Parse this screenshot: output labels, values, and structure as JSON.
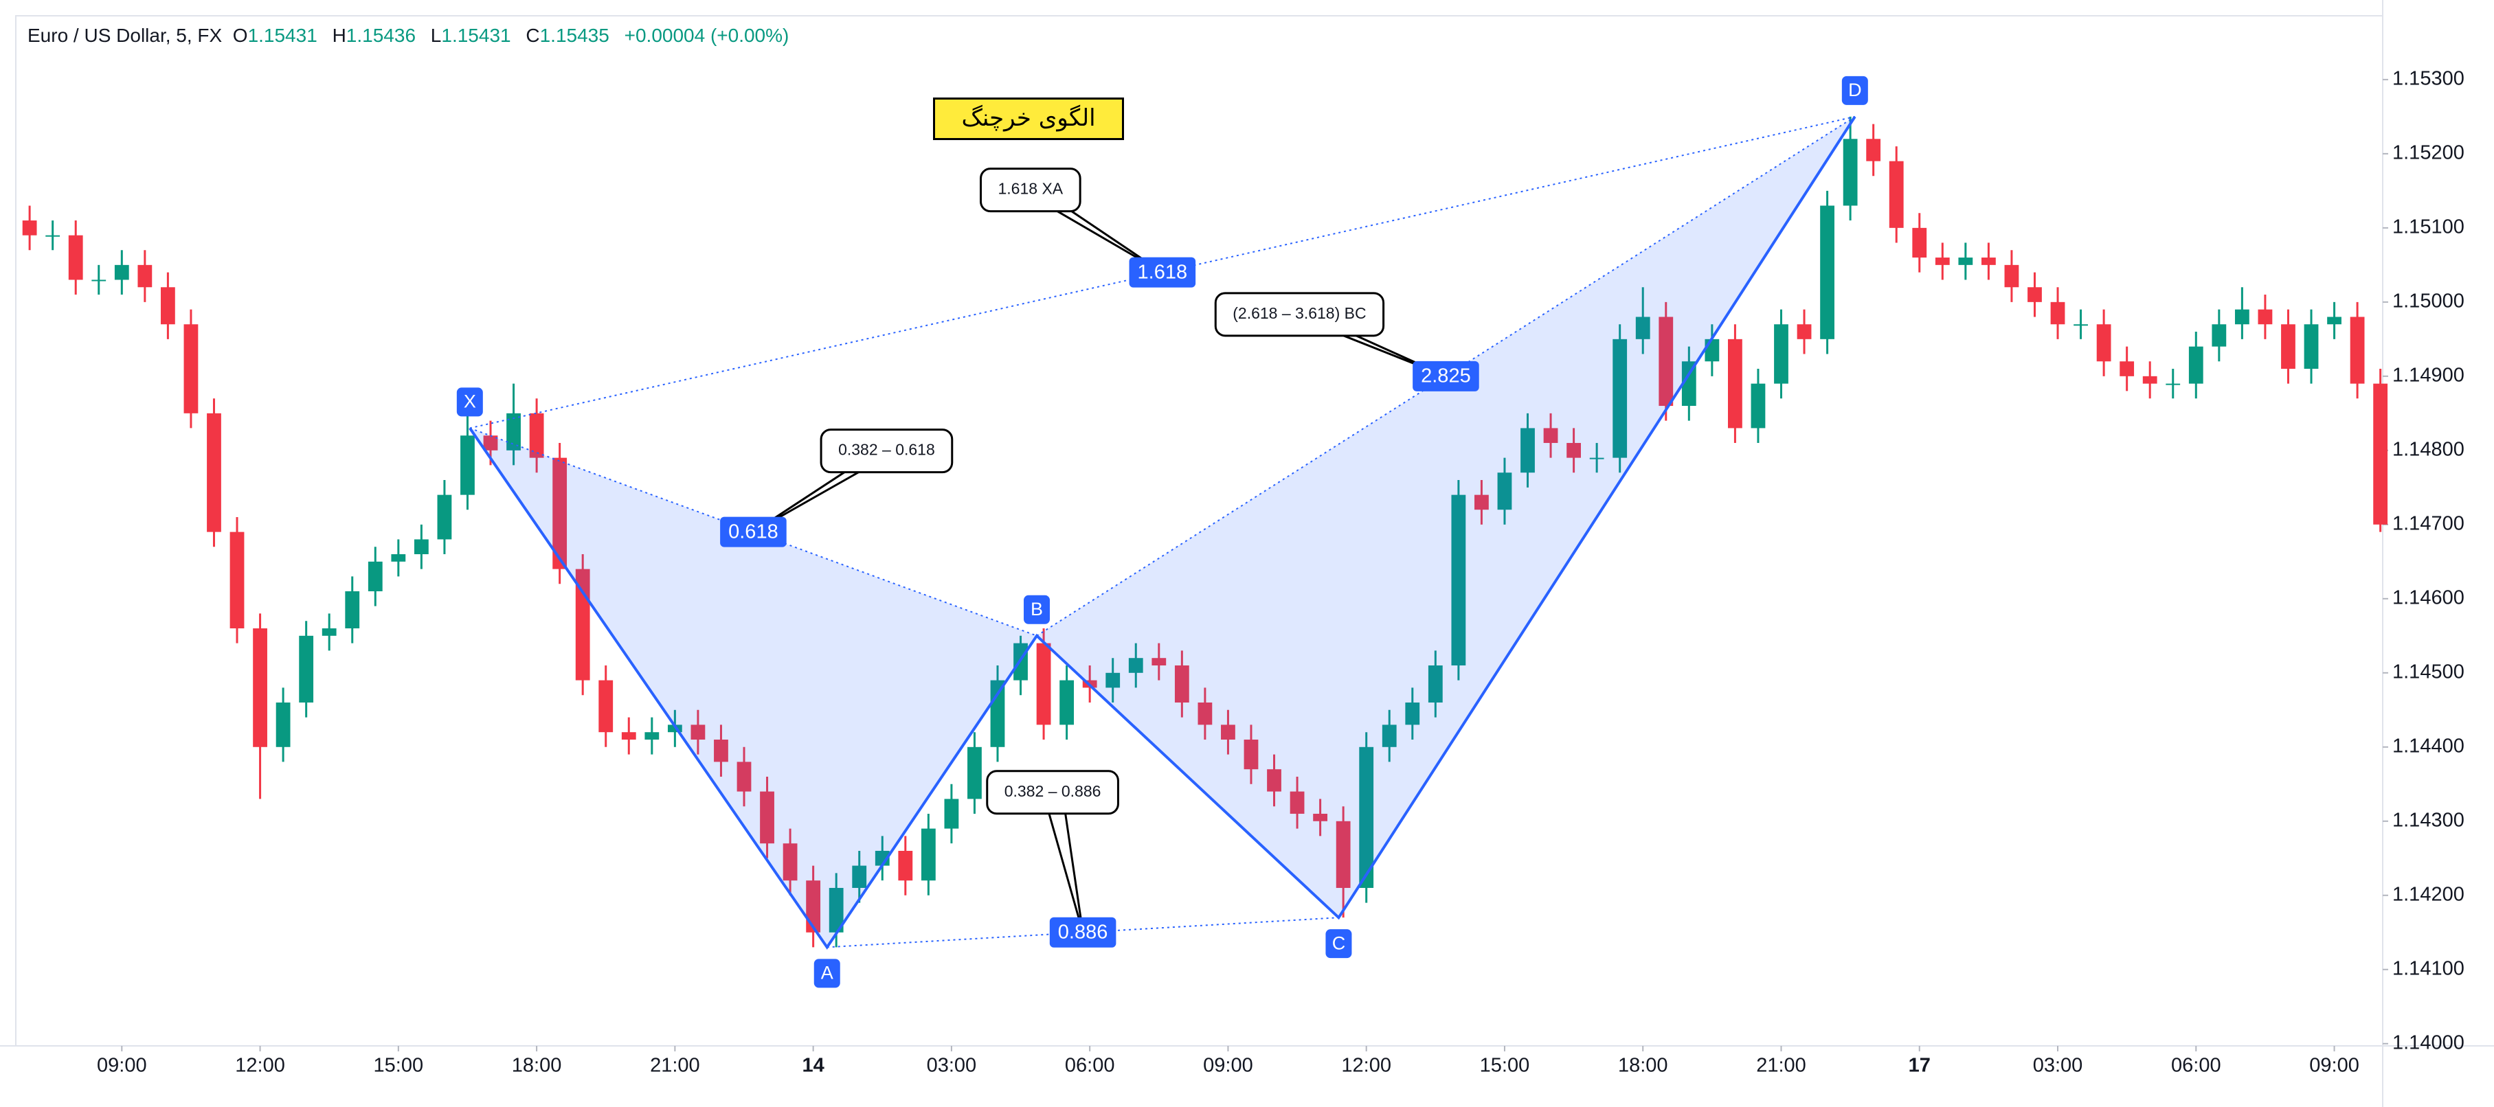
{
  "chart_data": {
    "type": "candlestick",
    "symbol": "Euro / US Dollar, 5, FX",
    "ohlc": [
      {
        "label": "O",
        "value": 1.15431
      },
      {
        "label": "H",
        "value": 1.15436
      },
      {
        "label": "L",
        "value": 1.15431
      },
      {
        "label": "C",
        "value": 1.15435
      }
    ],
    "change": "+0.00004 (+0.00%)",
    "title": "الگوی خرچنگ",
    "up_color": "#089981",
    "down_color": "#f23645",
    "grid": false,
    "xlim": [
      6.7,
      58.05
    ],
    "ylim": [
      1.13997,
      1.15386
    ],
    "xticks": [
      {
        "value": 9,
        "label": "09:00"
      },
      {
        "value": 12,
        "label": "12:00"
      },
      {
        "value": 15,
        "label": "15:00"
      },
      {
        "value": 18,
        "label": "18:00"
      },
      {
        "value": 21,
        "label": "21:00"
      },
      {
        "value": 24,
        "label": "14"
      },
      {
        "value": 27,
        "label": "03:00"
      },
      {
        "value": 30,
        "label": "06:00"
      },
      {
        "value": 33,
        "label": "09:00"
      },
      {
        "value": 36,
        "label": "12:00"
      },
      {
        "value": 39,
        "label": "15:00"
      },
      {
        "value": 42,
        "label": "18:00"
      },
      {
        "value": 45,
        "label": "21:00"
      },
      {
        "value": 48,
        "label": "17"
      },
      {
        "value": 51,
        "label": "03:00"
      },
      {
        "value": 54,
        "label": "06:00"
      },
      {
        "value": 57,
        "label": "09:00"
      }
    ],
    "yticks": [
      {
        "value": 1.14,
        "label": "1.14000"
      },
      {
        "value": 1.141,
        "label": "1.14100"
      },
      {
        "value": 1.142,
        "label": "1.14200"
      },
      {
        "value": 1.143,
        "label": "1.14300"
      },
      {
        "value": 1.144,
        "label": "1.14400"
      },
      {
        "value": 1.145,
        "label": "1.14500"
      },
      {
        "value": 1.146,
        "label": "1.14600"
      },
      {
        "value": 1.147,
        "label": "1.14700"
      },
      {
        "value": 1.148,
        "label": "1.14800"
      },
      {
        "value": 1.149,
        "label": "1.14900"
      },
      {
        "value": 1.15,
        "label": "1.15000"
      },
      {
        "value": 1.151,
        "label": "1.15100"
      },
      {
        "value": 1.152,
        "label": "1.15200"
      },
      {
        "value": 1.153,
        "label": "1.15300"
      }
    ],
    "x": [
      7,
      7.5,
      8,
      8.5,
      9,
      9.5,
      10,
      10.5,
      11,
      11.5,
      12,
      12.5,
      13,
      13.5,
      14,
      14.5,
      15,
      15.5,
      16,
      16.5,
      17,
      17.5,
      18,
      18.5,
      19,
      19.5,
      20,
      20.5,
      21,
      21.5,
      22,
      22.5,
      23,
      23.5,
      24,
      24.5,
      25,
      25.5,
      26,
      26.5,
      27,
      27.5,
      28,
      28.5,
      29,
      29.5,
      30,
      30.5,
      31,
      31.5,
      32,
      32.5,
      33,
      33.5,
      34,
      34.5,
      35,
      35.5,
      36,
      36.5,
      37,
      37.5,
      38,
      38.5,
      39,
      39.5,
      40,
      40.5,
      41,
      41.5,
      42,
      42.5,
      43,
      43.5,
      44,
      44.5,
      45,
      45.5,
      46,
      46.5,
      47,
      47.5,
      48,
      48.5,
      49,
      49.5,
      50,
      50.5,
      51,
      51.5,
      52,
      52.5,
      53,
      53.5,
      54,
      54.5,
      55,
      55.5,
      56,
      56.5,
      57,
      57.5,
      58
    ],
    "candles": [
      [
        1.1511,
        1.1513,
        1.1507,
        1.1509
      ],
      [
        1.1509,
        1.1511,
        1.1507,
        1.1509
      ],
      [
        1.1509,
        1.1511,
        1.1501,
        1.1503
      ],
      [
        1.1503,
        1.1505,
        1.1501,
        1.1503
      ],
      [
        1.1503,
        1.1507,
        1.1501,
        1.1505
      ],
      [
        1.1505,
        1.1507,
        1.15,
        1.1502
      ],
      [
        1.1502,
        1.1504,
        1.1495,
        1.1497
      ],
      [
        1.1497,
        1.1499,
        1.1483,
        1.1485
      ],
      [
        1.1485,
        1.1487,
        1.1467,
        1.1469
      ],
      [
        1.1469,
        1.1471,
        1.1454,
        1.1456
      ],
      [
        1.1456,
        1.1458,
        1.1433,
        1.144
      ],
      [
        1.144,
        1.1448,
        1.1438,
        1.1446
      ],
      [
        1.1446,
        1.1457,
        1.1444,
        1.1455
      ],
      [
        1.1455,
        1.1458,
        1.1453,
        1.1456
      ],
      [
        1.1456,
        1.1463,
        1.1454,
        1.1461
      ],
      [
        1.1461,
        1.1467,
        1.1459,
        1.1465
      ],
      [
        1.1465,
        1.1468,
        1.1463,
        1.1466
      ],
      [
        1.1466,
        1.147,
        1.1464,
        1.1468
      ],
      [
        1.1468,
        1.1476,
        1.1466,
        1.1474
      ],
      [
        1.1474,
        1.1487,
        1.1472,
        1.1482
      ],
      [
        1.1482,
        1.1484,
        1.1478,
        1.148
      ],
      [
        1.148,
        1.1489,
        1.1478,
        1.1485
      ],
      [
        1.1485,
        1.1487,
        1.1477,
        1.1479
      ],
      [
        1.1479,
        1.1481,
        1.1462,
        1.1464
      ],
      [
        1.1464,
        1.1466,
        1.1447,
        1.1449
      ],
      [
        1.1449,
        1.1451,
        1.144,
        1.1442
      ],
      [
        1.1442,
        1.1444,
        1.1439,
        1.1441
      ],
      [
        1.1441,
        1.1444,
        1.1439,
        1.1442
      ],
      [
        1.1442,
        1.1445,
        1.144,
        1.1443
      ],
      [
        1.1443,
        1.1445,
        1.1439,
        1.1441
      ],
      [
        1.1441,
        1.1443,
        1.1436,
        1.1438
      ],
      [
        1.1438,
        1.144,
        1.1432,
        1.1434
      ],
      [
        1.1434,
        1.1436,
        1.1425,
        1.1427
      ],
      [
        1.1427,
        1.1429,
        1.142,
        1.1422
      ],
      [
        1.1422,
        1.1424,
        1.1413,
        1.1415
      ],
      [
        1.1415,
        1.1423,
        1.1413,
        1.1421
      ],
      [
        1.1421,
        1.1426,
        1.1419,
        1.1424
      ],
      [
        1.1424,
        1.1428,
        1.1422,
        1.1426
      ],
      [
        1.1426,
        1.1428,
        1.142,
        1.1422
      ],
      [
        1.1422,
        1.1431,
        1.142,
        1.1429
      ],
      [
        1.1429,
        1.1435,
        1.1427,
        1.1433
      ],
      [
        1.1433,
        1.1442,
        1.1431,
        1.144
      ],
      [
        1.144,
        1.1451,
        1.1438,
        1.1449
      ],
      [
        1.1449,
        1.1455,
        1.1447,
        1.1454
      ],
      [
        1.1454,
        1.1456,
        1.1441,
        1.1443
      ],
      [
        1.1443,
        1.1451,
        1.1441,
        1.1449
      ],
      [
        1.1449,
        1.1451,
        1.1446,
        1.1448
      ],
      [
        1.1448,
        1.1452,
        1.1446,
        1.145
      ],
      [
        1.145,
        1.1454,
        1.1448,
        1.1452
      ],
      [
        1.1452,
        1.1454,
        1.1449,
        1.1451
      ],
      [
        1.1451,
        1.1453,
        1.1444,
        1.1446
      ],
      [
        1.1446,
        1.1448,
        1.1441,
        1.1443
      ],
      [
        1.1443,
        1.1445,
        1.1439,
        1.1441
      ],
      [
        1.1441,
        1.1443,
        1.1435,
        1.1437
      ],
      [
        1.1437,
        1.1439,
        1.1432,
        1.1434
      ],
      [
        1.1434,
        1.1436,
        1.1429,
        1.1431
      ],
      [
        1.1431,
        1.1433,
        1.1428,
        1.143
      ],
      [
        1.143,
        1.1432,
        1.1417,
        1.1421
      ],
      [
        1.1421,
        1.1442,
        1.1419,
        1.144
      ],
      [
        1.144,
        1.1445,
        1.1438,
        1.1443
      ],
      [
        1.1443,
        1.1448,
        1.1441,
        1.1446
      ],
      [
        1.1446,
        1.1453,
        1.1444,
        1.1451
      ],
      [
        1.1451,
        1.1476,
        1.1449,
        1.1474
      ],
      [
        1.1474,
        1.1476,
        1.147,
        1.1472
      ],
      [
        1.1472,
        1.1479,
        1.147,
        1.1477
      ],
      [
        1.1477,
        1.1485,
        1.1475,
        1.1483
      ],
      [
        1.1483,
        1.1485,
        1.1479,
        1.1481
      ],
      [
        1.1481,
        1.1483,
        1.1477,
        1.1479
      ],
      [
        1.1479,
        1.1481,
        1.1477,
        1.1479
      ],
      [
        1.1479,
        1.1497,
        1.1477,
        1.1495
      ],
      [
        1.1495,
        1.1502,
        1.1493,
        1.1498
      ],
      [
        1.1498,
        1.15,
        1.1484,
        1.1486
      ],
      [
        1.1486,
        1.1494,
        1.1484,
        1.1492
      ],
      [
        1.1492,
        1.1497,
        1.149,
        1.1495
      ],
      [
        1.1495,
        1.1497,
        1.1481,
        1.1483
      ],
      [
        1.1483,
        1.1491,
        1.1481,
        1.1489
      ],
      [
        1.1489,
        1.1499,
        1.1487,
        1.1497
      ],
      [
        1.1497,
        1.1499,
        1.1493,
        1.1495
      ],
      [
        1.1495,
        1.1515,
        1.1493,
        1.1513
      ],
      [
        1.1513,
        1.1525,
        1.1511,
        1.1522
      ],
      [
        1.1522,
        1.1524,
        1.1517,
        1.1519
      ],
      [
        1.1519,
        1.1521,
        1.1508,
        1.151
      ],
      [
        1.151,
        1.1512,
        1.1504,
        1.1506
      ],
      [
        1.1506,
        1.1508,
        1.1503,
        1.1505
      ],
      [
        1.1505,
        1.1508,
        1.1503,
        1.1506
      ],
      [
        1.1506,
        1.1508,
        1.1503,
        1.1505
      ],
      [
        1.1505,
        1.1507,
        1.15,
        1.1502
      ],
      [
        1.1502,
        1.1504,
        1.1498,
        1.15
      ],
      [
        1.15,
        1.1502,
        1.1495,
        1.1497
      ],
      [
        1.1497,
        1.1499,
        1.1495,
        1.1497
      ],
      [
        1.1497,
        1.1499,
        1.149,
        1.1492
      ],
      [
        1.1492,
        1.1494,
        1.1488,
        1.149
      ],
      [
        1.149,
        1.1492,
        1.1487,
        1.1489
      ],
      [
        1.1489,
        1.1491,
        1.1487,
        1.1489
      ],
      [
        1.1489,
        1.1496,
        1.1487,
        1.1494
      ],
      [
        1.1494,
        1.1499,
        1.1492,
        1.1497
      ],
      [
        1.1497,
        1.1502,
        1.1495,
        1.1499
      ],
      [
        1.1499,
        1.1501,
        1.1495,
        1.1497
      ],
      [
        1.1497,
        1.1499,
        1.1489,
        1.1491
      ],
      [
        1.1491,
        1.1499,
        1.1489,
        1.1497
      ],
      [
        1.1497,
        1.15,
        1.1495,
        1.1498
      ],
      [
        1.1498,
        1.15,
        1.1487,
        1.1489
      ],
      [
        1.1489,
        1.1491,
        1.1469,
        1.147
      ]
    ],
    "pattern": {
      "color": "#2962ff",
      "points": [
        {
          "label": "X",
          "x": 16.55,
          "price": 1.1483
        },
        {
          "label": "A",
          "x": 24.3,
          "price": 1.1413
        },
        {
          "label": "B",
          "x": 28.85,
          "price": 1.1455
        },
        {
          "label": "C",
          "x": 35.4,
          "price": 1.1417
        },
        {
          "label": "D",
          "x": 46.6,
          "price": 1.1525
        }
      ],
      "ratios": [
        {
          "value": 1.618,
          "range": "1.618 XA"
        },
        {
          "value": 0.618,
          "range": "0.382 – 0.618"
        },
        {
          "value": 0.886,
          "range": "0.382 – 0.886"
        },
        {
          "value": 2.825,
          "range": "(2.618 – 3.618) BC"
        }
      ]
    }
  }
}
